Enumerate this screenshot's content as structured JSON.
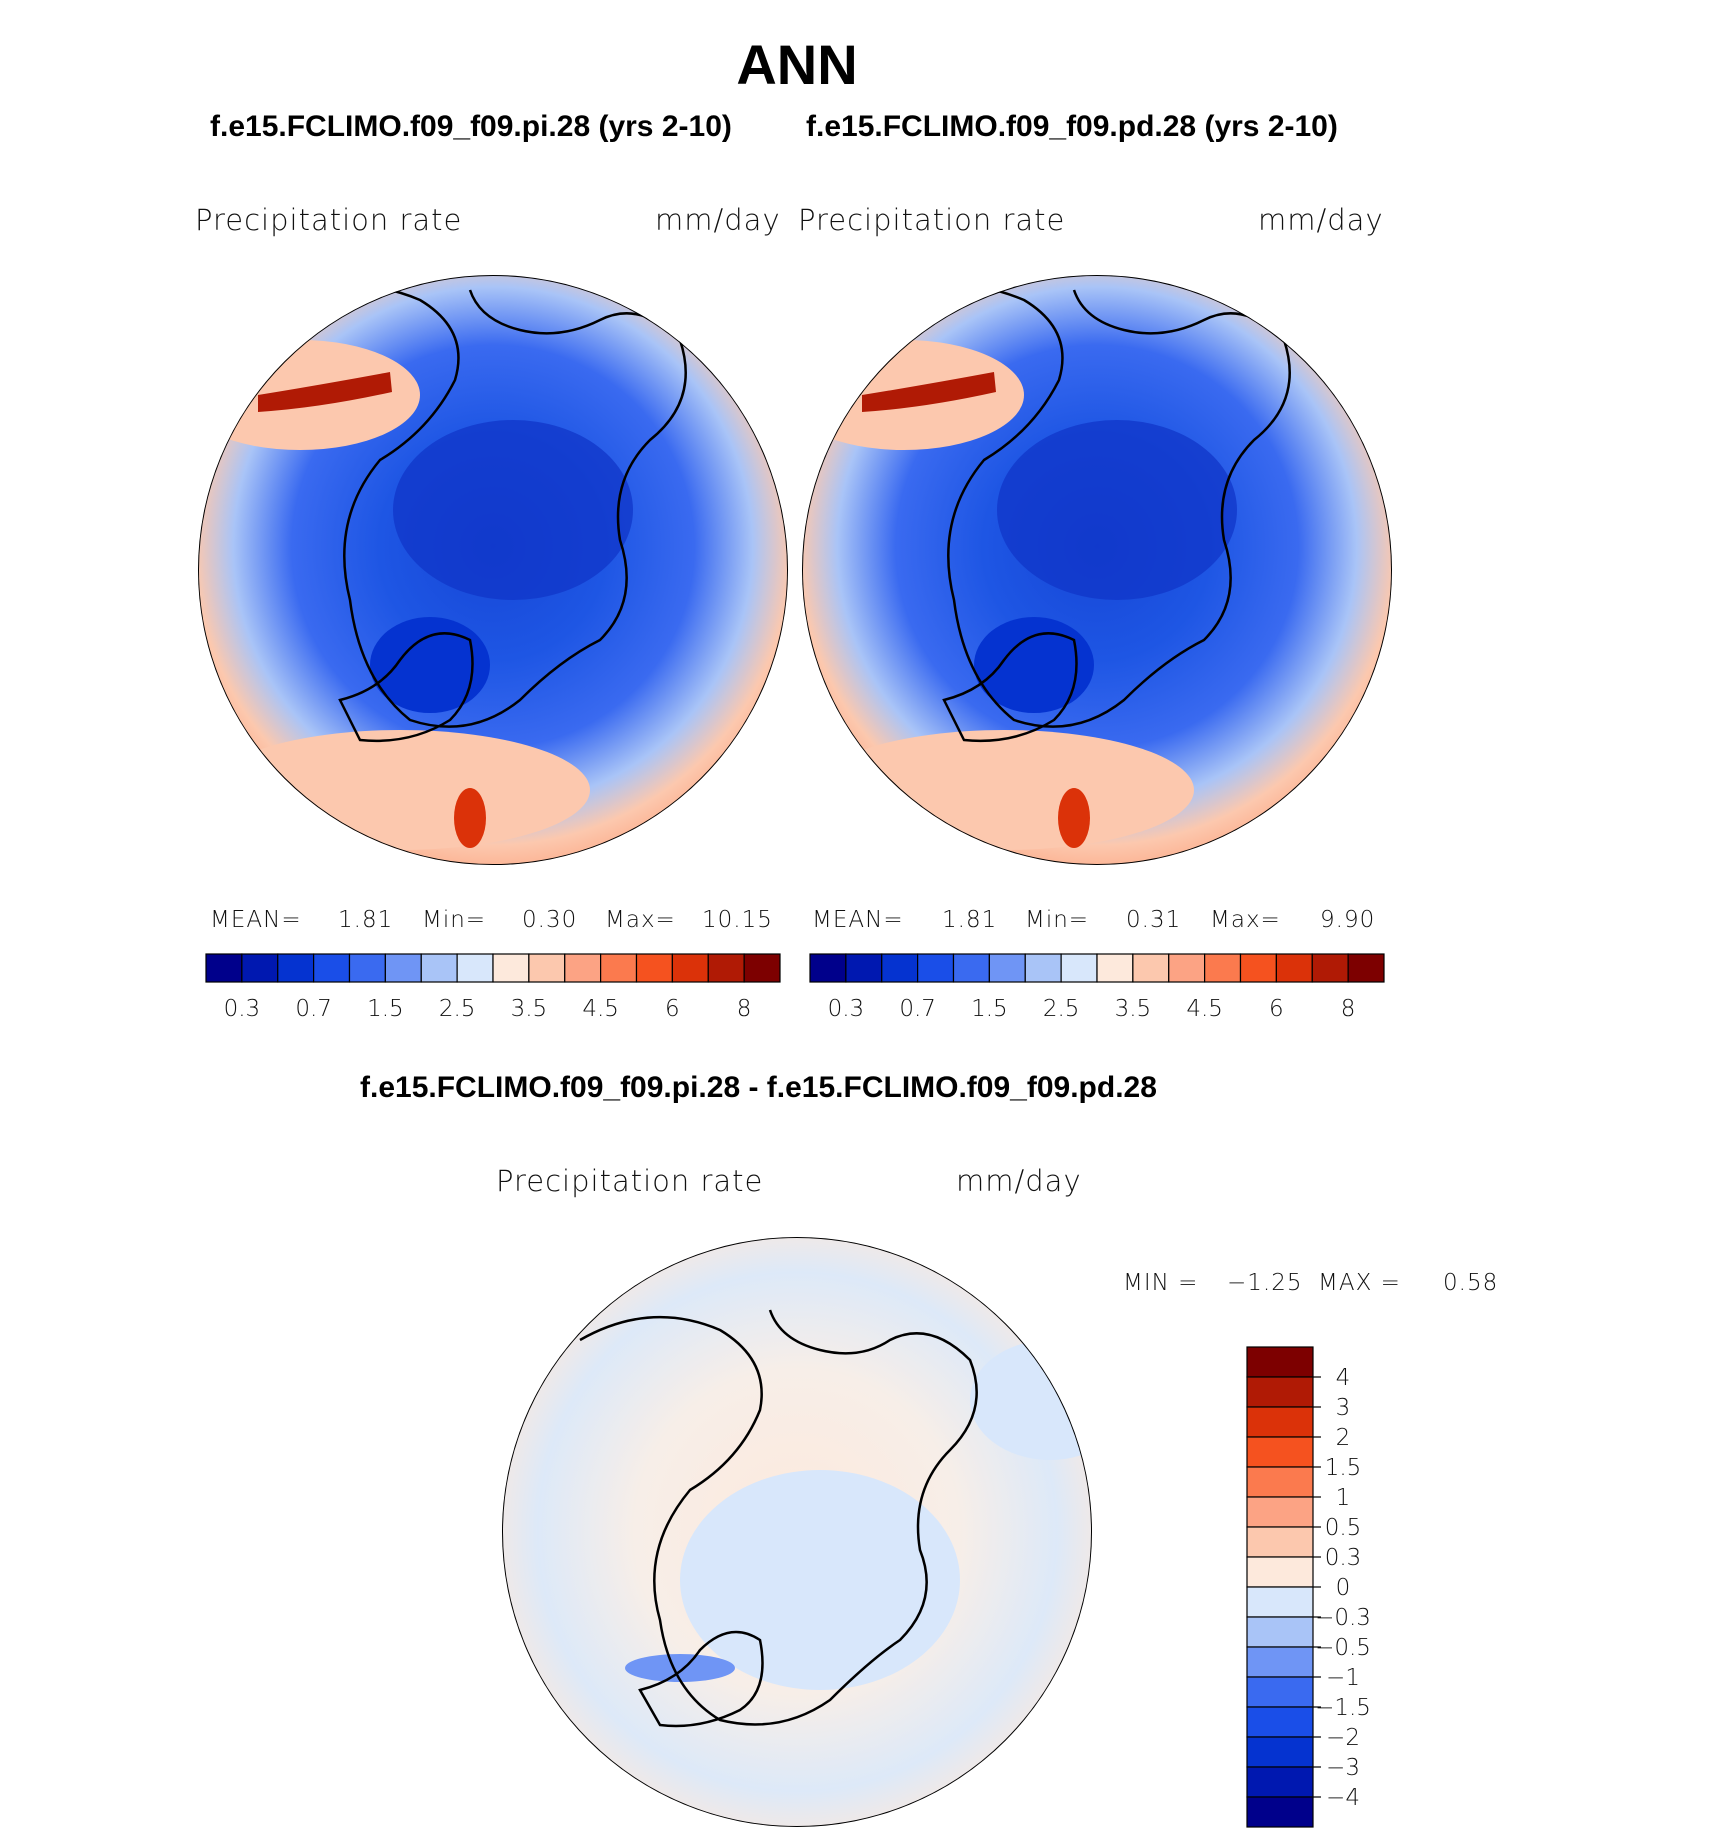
{
  "title": "ANN",
  "panels": [
    {
      "case": "f.e15.FCLIMO.f09_f09.pi.28 (yrs 2-10)",
      "variable": "Precipitation  rate",
      "units": "mm/day",
      "stats": {
        "mean_label": "MEAN=",
        "mean": "1.81",
        "min_label": "Min=",
        "min": "0.30",
        "max_label": "Max=",
        "max": "10.15"
      }
    },
    {
      "case": "f.e15.FCLIMO.f09_f09.pd.28 (yrs 2-10)",
      "variable": "Precipitation  rate",
      "units": "mm/day",
      "stats": {
        "mean_label": "MEAN=",
        "mean": "1.81",
        "min_label": "Min=",
        "min": "0.31",
        "max_label": "Max=",
        "max": "9.90"
      }
    }
  ],
  "difference": {
    "title": "f.e15.FCLIMO.f09_f09.pi.28 - f.e15.FCLIMO.f09_f09.pd.28",
    "variable": "Precipitation  rate",
    "units": "mm/day",
    "min_label": "MIN =",
    "min": "−1.25",
    "max_label": "MAX =",
    "max": "0.58"
  },
  "colorbar_main": {
    "colors": [
      "#00008b",
      "#0018b0",
      "#0533d0",
      "#1a4ee8",
      "#3a6af0",
      "#6f95f5",
      "#a9c4f7",
      "#d8e7fb",
      "#fde9dc",
      "#fcc8ae",
      "#fca384",
      "#fb7a4e",
      "#f5521f",
      "#db3209",
      "#b01a05",
      "#7d0000"
    ],
    "labels": [
      "0.3",
      "0.7",
      "1.5",
      "2.5",
      "3.5",
      "4.5",
      "6",
      "8"
    ]
  },
  "colorbar_diff": {
    "colors": [
      "#7d0000",
      "#b01a05",
      "#db3209",
      "#f5521f",
      "#fb7a4e",
      "#fca384",
      "#fcc8ae",
      "#fde9dc",
      "#d8e7fb",
      "#a9c4f7",
      "#6f95f5",
      "#3a6af0",
      "#1a4ee8",
      "#0533d0",
      "#0018b0",
      "#00008b"
    ],
    "labels": [
      "4",
      "3",
      "2",
      "1.5",
      "1",
      "0.5",
      "0.3",
      "0",
      "−0.3",
      "−0.5",
      "−1",
      "−1.5",
      "−2",
      "−3",
      "−4"
    ]
  }
}
